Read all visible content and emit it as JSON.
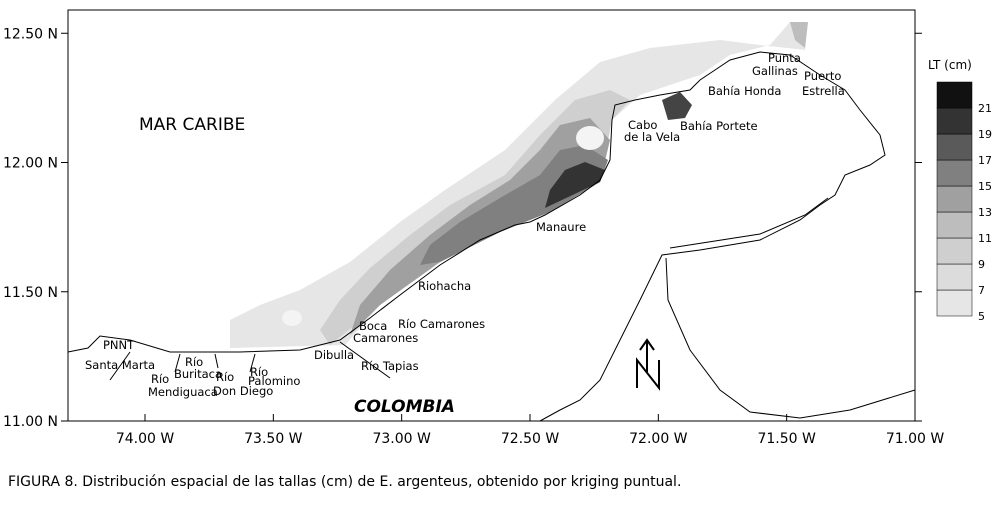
{
  "map": {
    "xlim": [
      -74.3,
      -71.0
    ],
    "ylim": [
      11.0,
      12.59
    ],
    "xticks": [
      {
        "value": -74.0,
        "label": "74.00 W"
      },
      {
        "value": -73.5,
        "label": "73.50 W"
      },
      {
        "value": -73.0,
        "label": "73.00 W"
      },
      {
        "value": -72.5,
        "label": "72.50 W"
      },
      {
        "value": -72.0,
        "label": "72.00 W"
      },
      {
        "value": -71.5,
        "label": "71.50 W"
      },
      {
        "value": -71.0,
        "label": "71.00 W"
      }
    ],
    "yticks": [
      {
        "value": 11.0,
        "label": "11.00 N"
      },
      {
        "value": 11.5,
        "label": "11.50 N"
      },
      {
        "value": 12.0,
        "label": "12.00 N"
      },
      {
        "value": 12.5,
        "label": "12.50 N"
      }
    ],
    "labels": [
      "MAR CARIBE",
      "COLOMBIA",
      "PNNT",
      "Santa Marta",
      "Río",
      "Mendiguaca",
      "Río",
      "Buritaca",
      "Río",
      "Don Diego",
      "Río",
      "Palomino",
      "Dibulla",
      "Río Tapias",
      "Boca",
      "Camarones",
      "Río Camarones",
      "Riohacha",
      "Manaure",
      "Cabo",
      "de la Vela",
      "Bahía Portete",
      "Bahía Honda",
      "Punta",
      "Gallinas",
      "Puerto",
      "Estrella"
    ],
    "legend": {
      "title": "LT (cm)",
      "levels": [
        5,
        7,
        9,
        11,
        13,
        15,
        17,
        19,
        21
      ],
      "colors": [
        "#e6e6e6",
        "#dcdcdc",
        "#cfcfcf",
        "#bdbdbd",
        "#a0a0a0",
        "#808080",
        "#5a5a5a",
        "#333333",
        "#111111"
      ]
    }
  },
  "caption": "FIGURA 8. Distribución espacial de las tallas (cm) de E. argenteus, obtenido por kriging puntual."
}
